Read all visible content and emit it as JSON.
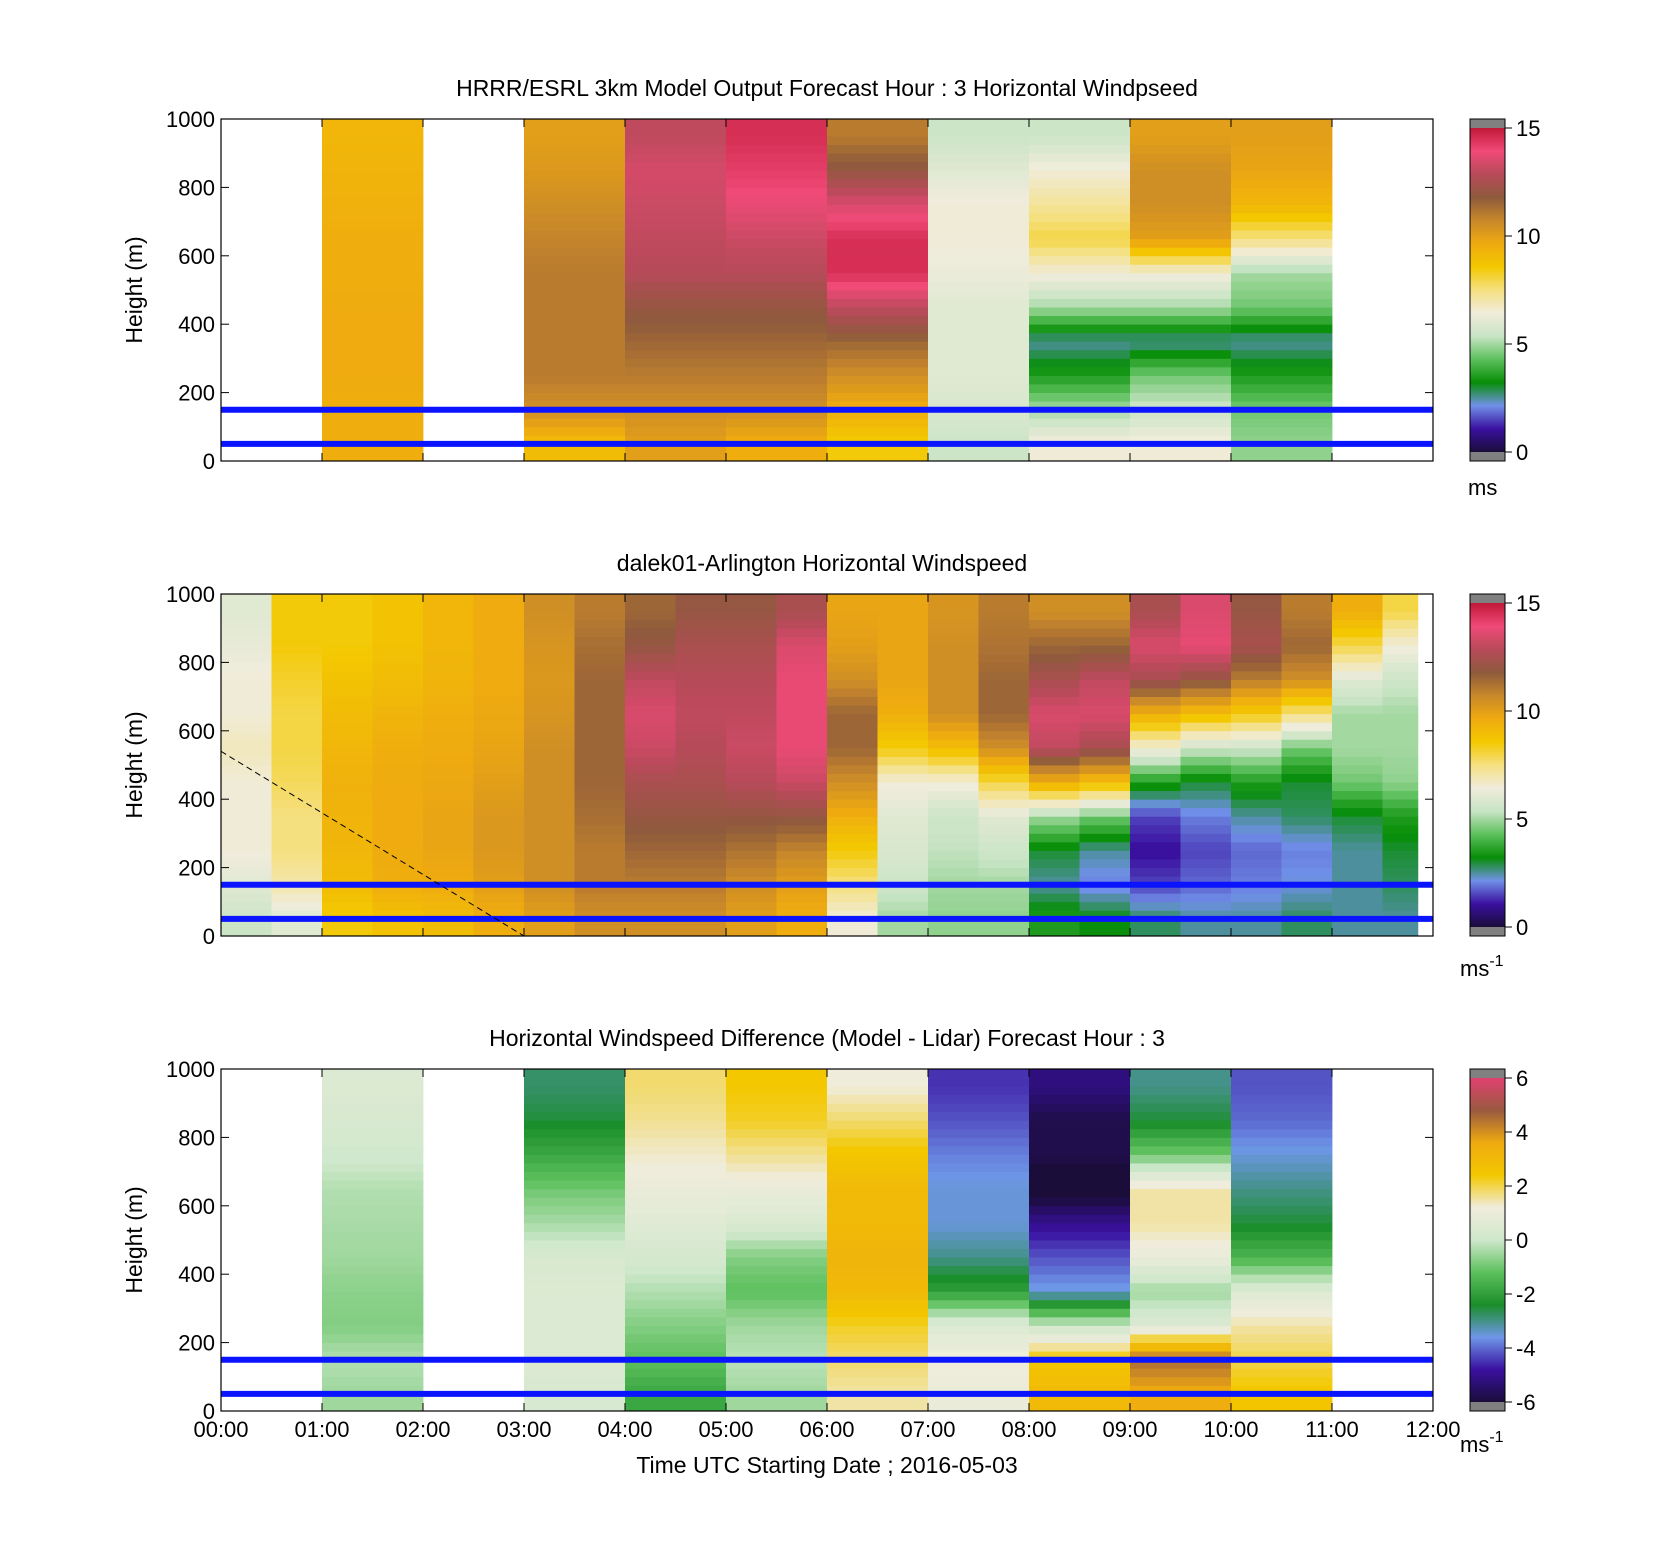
{
  "colors": {
    "speed_stops": [
      "#1a0d3a",
      "#3a10a0",
      "#7090e8",
      "#078e07",
      "#5cc05c",
      "#c8e4c4",
      "#f0ecdc",
      "#f5e080",
      "#f3c800",
      "#efaa10",
      "#c8882a",
      "#8e5a3c",
      "#b84a5a",
      "#f04a78",
      "#c01838"
    ],
    "diff_stops": [
      "#1a0d3a",
      "#3a10a0",
      "#6e96e8",
      "#1a8e2a",
      "#5cc05c",
      "#cfe8cc",
      "#f0ecdc",
      "#f3c800",
      "#efaa10",
      "#9a5a40",
      "#e04070"
    ],
    "overlay": "#0a14ff",
    "nodata": "#ffffff",
    "extreme_low": "#808080",
    "extreme_high": "#808080"
  },
  "xaxis": {
    "label": "Time UTC  Starting Date ; 2016-05-03",
    "ticks": [
      "00:00",
      "01:00",
      "02:00",
      "03:00",
      "04:00",
      "05:00",
      "06:00",
      "07:00",
      "08:00",
      "09:00",
      "10:00",
      "11:00",
      "12:00"
    ]
  },
  "chart_data": [
    {
      "type": "heatmap",
      "title": "HRRR/ESRL 3km Model Output   Forecast Hour : 3 Horizontal Windpseed",
      "ylabel": "Height (m)",
      "xlim_hours": [
        0,
        12
      ],
      "ylim": [
        0,
        1000
      ],
      "yticks": [
        "0",
        "200",
        "400",
        "600",
        "800",
        "1000"
      ],
      "colorbar": {
        "min": 0,
        "max": 15,
        "ticks": [
          "0",
          "5",
          "10",
          "15"
        ],
        "unit": "ms"
      },
      "heights": [
        50,
        150,
        250,
        350,
        450,
        550,
        650,
        750,
        850,
        950
      ],
      "columns": [
        {
          "start_hour": 1,
          "end_hour": 2,
          "values": [
            9.5,
            9.5,
            9.6,
            9.6,
            9.6,
            9.5,
            9.5,
            9.4,
            9.3,
            9.2
          ]
        },
        {
          "start_hour": 3,
          "end_hour": 4,
          "values": [
            9.0,
            10.5,
            11.0,
            11.0,
            11.0,
            11.0,
            10.8,
            10.5,
            10.2,
            10.0
          ]
        },
        {
          "start_hour": 4,
          "end_hour": 5,
          "values": [
            10.0,
            10.5,
            11.0,
            11.5,
            12.0,
            12.8,
            13.0,
            13.2,
            13.4,
            13.0
          ]
        },
        {
          "start_hour": 5,
          "end_hour": 6,
          "values": [
            9.5,
            10.5,
            11.0,
            11.5,
            12.0,
            12.8,
            13.2,
            13.8,
            14.2,
            14.5
          ]
        },
        {
          "start_hour": 6,
          "end_hour": 7,
          "values": [
            8.5,
            9.5,
            10.5,
            11.5,
            13.0,
            14.5,
            14.5,
            13.5,
            12.0,
            11.0
          ]
        },
        {
          "start_hour": 7,
          "end_hour": 8,
          "values": [
            5.5,
            5.8,
            6.0,
            6.0,
            6.0,
            6.3,
            6.5,
            6.5,
            6.0,
            5.5
          ]
        },
        {
          "start_hour": 8,
          "end_hour": 9,
          "values": [
            6.5,
            5.0,
            3.5,
            2.5,
            5.0,
            6.5,
            8.0,
            7.2,
            6.5,
            5.5
          ]
        },
        {
          "start_hour": 9,
          "end_hour": 10,
          "values": [
            6.5,
            5.5,
            4.5,
            2.5,
            5.0,
            6.5,
            10.0,
            10.5,
            10.5,
            10.0
          ]
        },
        {
          "start_hour": 10,
          "end_hour": 11,
          "values": [
            4.8,
            4.5,
            3.5,
            2.5,
            4.5,
            5.0,
            7.5,
            9.2,
            9.8,
            10.0
          ]
        }
      ],
      "reference_lines_m": [
        50,
        150
      ]
    },
    {
      "type": "heatmap",
      "title": "dalek01-Arlington  Horizontal Windspeed",
      "ylabel": "Height (m)",
      "xlim_hours": [
        0,
        12
      ],
      "ylim": [
        0,
        1000
      ],
      "yticks": [
        "0",
        "200",
        "400",
        "600",
        "800",
        "1000"
      ],
      "colorbar": {
        "min": 0,
        "max": 15,
        "ticks": [
          "0",
          "5",
          "10",
          "15"
        ],
        "unit": "ms",
        "unit_exp": "-1"
      },
      "heights": [
        50,
        150,
        250,
        350,
        450,
        550,
        650,
        750,
        850,
        950
      ],
      "columns": [
        {
          "start_hour": 0.0,
          "end_hour": 0.5,
          "values": [
            5.5,
            6.0,
            6.5,
            6.5,
            6.5,
            6.8,
            6.5,
            6.5,
            6.2,
            6.0
          ]
        },
        {
          "start_hour": 0.5,
          "end_hour": 1.0,
          "values": [
            6.0,
            7.0,
            7.5,
            7.5,
            7.8,
            8.0,
            8.0,
            8.2,
            8.5,
            8.5
          ]
        },
        {
          "start_hour": 1.0,
          "end_hour": 1.5,
          "values": [
            8.5,
            9.0,
            9.2,
            9.3,
            9.4,
            9.2,
            9.0,
            8.8,
            8.5,
            8.5
          ]
        },
        {
          "start_hour": 1.5,
          "end_hour": 2.0,
          "values": [
            8.8,
            9.5,
            9.6,
            9.6,
            9.6,
            9.5,
            9.3,
            9.0,
            8.8,
            8.8
          ]
        },
        {
          "start_hour": 2.0,
          "end_hour": 2.5,
          "values": [
            9.0,
            9.6,
            9.8,
            9.8,
            9.7,
            9.6,
            9.5,
            9.3,
            9.2,
            9.2
          ]
        },
        {
          "start_hour": 2.5,
          "end_hour": 3.0,
          "values": [
            9.5,
            10.0,
            10.2,
            10.2,
            10.0,
            9.8,
            9.7,
            9.6,
            9.6,
            9.6
          ]
        },
        {
          "start_hour": 3.0,
          "end_hour": 3.5,
          "values": [
            10.0,
            10.5,
            10.5,
            10.5,
            10.5,
            10.5,
            10.3,
            10.2,
            10.3,
            10.5
          ]
        },
        {
          "start_hour": 3.5,
          "end_hour": 4.0,
          "values": [
            10.5,
            11.0,
            11.0,
            11.3,
            11.5,
            11.5,
            11.5,
            11.5,
            11.3,
            11.0
          ]
        },
        {
          "start_hour": 4.0,
          "end_hour": 4.5,
          "values": [
            10.5,
            11.0,
            11.5,
            12.0,
            12.5,
            13.2,
            13.5,
            13.0,
            12.0,
            11.5
          ]
        },
        {
          "start_hour": 4.5,
          "end_hour": 5.0,
          "values": [
            10.5,
            11.0,
            11.5,
            12.0,
            12.5,
            12.8,
            13.0,
            12.8,
            12.5,
            12.0
          ]
        },
        {
          "start_hour": 5.0,
          "end_hour": 5.5,
          "values": [
            10.0,
            10.5,
            11.2,
            12.0,
            12.8,
            13.2,
            13.0,
            12.8,
            12.5,
            12.0
          ]
        },
        {
          "start_hour": 5.5,
          "end_hour": 6.0,
          "values": [
            9.5,
            10.0,
            10.8,
            12.0,
            13.2,
            13.8,
            13.8,
            13.8,
            13.5,
            12.5
          ]
        },
        {
          "start_hour": 6.0,
          "end_hour": 6.5,
          "values": [
            6.5,
            7.5,
            8.5,
            9.5,
            10.5,
            11.5,
            11.5,
            10.5,
            10.0,
            9.8
          ]
        },
        {
          "start_hour": 6.5,
          "end_hour": 7.0,
          "values": [
            5.0,
            5.5,
            5.8,
            6.0,
            6.5,
            8.5,
            9.5,
            9.8,
            9.8,
            9.8
          ]
        },
        {
          "start_hour": 7.0,
          "end_hour": 7.5,
          "values": [
            4.8,
            5.0,
            5.3,
            5.5,
            6.5,
            9.0,
            10.5,
            10.5,
            10.5,
            10.3
          ]
        },
        {
          "start_hour": 7.5,
          "end_hour": 8.0,
          "values": [
            4.8,
            5.0,
            5.5,
            6.0,
            8.0,
            10.5,
            11.5,
            11.5,
            11.2,
            11.0
          ]
        },
        {
          "start_hour": 8.0,
          "end_hour": 8.5,
          "values": [
            3.5,
            2.5,
            3.0,
            5.0,
            9.5,
            13.0,
            13.5,
            12.5,
            11.5,
            10.5
          ]
        },
        {
          "start_hour": 8.5,
          "end_hour": 9.0,
          "values": [
            3.2,
            2.0,
            2.5,
            4.5,
            9.0,
            12.5,
            13.5,
            13.0,
            11.5,
            10.5
          ]
        },
        {
          "start_hour": 9.0,
          "end_hour": 9.5,
          "values": [
            2.8,
            1.5,
            1.0,
            1.5,
            3.5,
            6.5,
            9.5,
            12.5,
            13.5,
            12.5
          ]
        },
        {
          "start_hour": 9.5,
          "end_hour": 10.0,
          "values": [
            2.5,
            1.8,
            1.5,
            2.0,
            3.0,
            5.5,
            9.0,
            12.0,
            13.8,
            13.5
          ]
        },
        {
          "start_hour": 10.0,
          "end_hour": 10.5,
          "values": [
            2.5,
            2.0,
            1.8,
            2.5,
            3.5,
            5.5,
            8.5,
            11.0,
            12.5,
            12.0
          ]
        },
        {
          "start_hour": 10.5,
          "end_hour": 11.0,
          "values": [
            2.8,
            2.2,
            2.0,
            2.8,
            3.0,
            4.5,
            7.5,
            10.5,
            11.5,
            11.0
          ]
        },
        {
          "start_hour": 11.0,
          "end_hour": 11.5,
          "values": [
            2.5,
            2.5,
            2.5,
            3.0,
            4.5,
            5.0,
            5.0,
            6.0,
            8.0,
            9.5
          ]
        },
        {
          "start_hour": 11.5,
          "end_hour": 11.85,
          "values": [
            2.5,
            2.8,
            3.0,
            3.5,
            4.8,
            5.0,
            5.0,
            5.5,
            6.5,
            8.0
          ]
        }
      ],
      "reference_lines_m": [
        50,
        150
      ],
      "dashed_line": {
        "from": {
          "hour": 0,
          "height": 540
        },
        "to": {
          "hour": 3,
          "height": 0
        }
      }
    },
    {
      "type": "heatmap",
      "title": "Horizontal Windspeed Difference (Model - Lidar) Forecast Hour : 3",
      "ylabel": "Height (m)",
      "xlim_hours": [
        0,
        12
      ],
      "ylim": [
        0,
        1000
      ],
      "yticks": [
        "0",
        "200",
        "400",
        "600",
        "800",
        "1000"
      ],
      "colorbar": {
        "min": -6,
        "max": 6,
        "ticks": [
          "-6",
          "-4",
          "-2",
          "0",
          "2",
          "4",
          "6"
        ],
        "unit": "ms",
        "unit_exp": "-1"
      },
      "heights": [
        50,
        150,
        250,
        350,
        450,
        550,
        650,
        750,
        850,
        950
      ],
      "columns": [
        {
          "start_hour": 1,
          "end_hour": 2,
          "values": [
            -0.5,
            -0.3,
            -0.8,
            -0.7,
            -0.5,
            -0.4,
            -0.3,
            0.1,
            0.3,
            0.5
          ]
        },
        {
          "start_hour": 3,
          "end_hour": 4,
          "values": [
            0.3,
            0.5,
            0.5,
            0.5,
            0.3,
            -0.4,
            -1.0,
            -1.8,
            -2.5,
            -2.8
          ]
        },
        {
          "start_hour": 4,
          "end_hour": 5,
          "values": [
            -1.8,
            -1.2,
            -0.8,
            -0.3,
            0.2,
            0.6,
            1.0,
            1.3,
            1.6,
            1.8
          ]
        },
        {
          "start_hour": 5,
          "end_hour": 6,
          "values": [
            -0.5,
            -0.2,
            -0.5,
            -1.2,
            -0.8,
            0.4,
            1.0,
            1.6,
            2.2,
            2.4
          ]
        },
        {
          "start_hour": 6,
          "end_hour": 7,
          "values": [
            1.5,
            1.8,
            2.2,
            3.0,
            3.2,
            3.0,
            3.0,
            2.5,
            1.8,
            1.2
          ]
        },
        {
          "start_hour": 7,
          "end_hour": 8,
          "values": [
            1.0,
            1.2,
            0.5,
            -2.0,
            -3.0,
            -3.5,
            -3.5,
            -3.8,
            -4.2,
            -4.5
          ]
        },
        {
          "start_hour": 8,
          "end_hour": 9,
          "values": [
            3.0,
            2.5,
            0.0,
            -3.5,
            -4.2,
            -5.0,
            -6.3,
            -5.8,
            -5.8,
            -5.2
          ]
        },
        {
          "start_hour": 9,
          "end_hour": 10,
          "values": [
            3.5,
            4.5,
            0.5,
            -0.5,
            1.0,
            1.5,
            1.5,
            -1.0,
            -2.5,
            -3.0
          ]
        },
        {
          "start_hour": 10,
          "end_hour": 11,
          "values": [
            2.5,
            2.0,
            1.5,
            0.5,
            -1.5,
            -2.5,
            -3.0,
            -3.5,
            -4.0,
            -4.2
          ]
        }
      ],
      "reference_lines_m": [
        50,
        150
      ]
    }
  ]
}
